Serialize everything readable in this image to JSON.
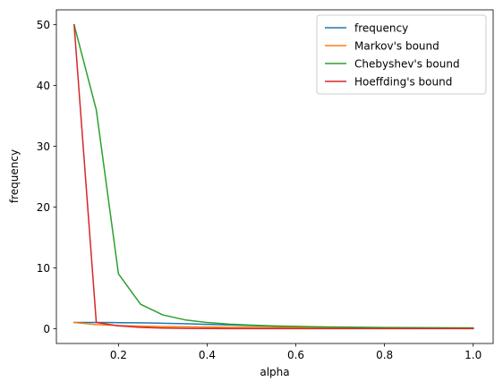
{
  "chart_data": {
    "type": "line",
    "title": "",
    "xlabel": "alpha",
    "ylabel": "frequency",
    "xlim": [
      0.06,
      1.045
    ],
    "ylim": [
      -2.45,
      52.45
    ],
    "xticks": [
      0.2,
      0.4,
      0.6,
      0.8,
      1.0
    ],
    "xtick_labels": [
      "0.2",
      "0.4",
      "0.6",
      "0.8",
      "1.0"
    ],
    "yticks": [
      0,
      10,
      20,
      30,
      40,
      50
    ],
    "ytick_labels": [
      "0",
      "10",
      "20",
      "30",
      "40",
      "50"
    ],
    "grid": false,
    "legend_position": "top-right",
    "x": [
      0.1,
      0.15,
      0.2,
      0.25,
      0.3,
      0.35,
      0.4,
      0.45,
      0.5,
      0.55,
      0.6,
      0.65,
      0.7,
      0.75,
      0.8,
      0.85,
      0.9,
      0.95,
      1.0
    ],
    "series": [
      {
        "name": "frequency",
        "color": "#1f77b4",
        "values": [
          1.0,
          1.0,
          0.98,
          0.95,
          0.88,
          0.8,
          0.7,
          0.6,
          0.5,
          0.4,
          0.32,
          0.26,
          0.2,
          0.16,
          0.12,
          0.09,
          0.06,
          0.04,
          0.02
        ]
      },
      {
        "name": "Markov's bound",
        "color": "#ff7f0e",
        "values": [
          1.0,
          0.667,
          0.5,
          0.4,
          0.333,
          0.286,
          0.25,
          0.222,
          0.2,
          0.182,
          0.167,
          0.154,
          0.143,
          0.133,
          0.125,
          0.118,
          0.111,
          0.105,
          0.1
        ]
      },
      {
        "name": "Chebyshev's bound",
        "color": "#2ca02c",
        "values": [
          50.0,
          36.0,
          9.0,
          4.0,
          2.25,
          1.44,
          1.0,
          0.73,
          0.56,
          0.44,
          0.36,
          0.3,
          0.25,
          0.21,
          0.18,
          0.16,
          0.14,
          0.12,
          0.11
        ]
      },
      {
        "name": "Hoeffding's bound",
        "color": "#d62728",
        "values": [
          50.0,
          1.0,
          0.45,
          0.2,
          0.08,
          0.03,
          0.01,
          0.005,
          0.002,
          0.001,
          0.0,
          0.0,
          0.0,
          0.0,
          0.0,
          0.0,
          0.0,
          0.0,
          0.0
        ]
      }
    ]
  }
}
